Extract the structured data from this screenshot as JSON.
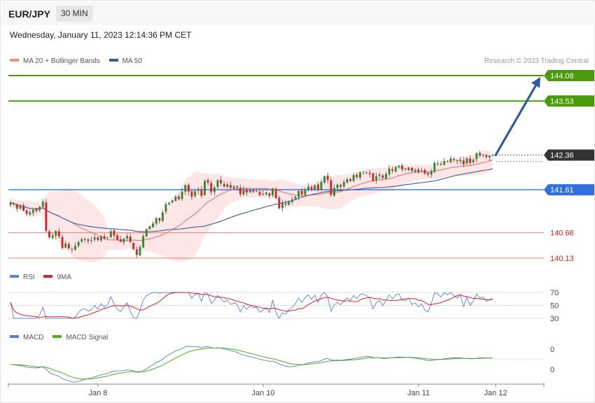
{
  "header": {
    "symbol": "EUR/JPY",
    "timeframe": "30 MIN",
    "datetime": "Wednesday, January 11, 2023 12:14:36 PM CET",
    "copyright": "Research © 2023 Trading Central"
  },
  "legends": {
    "price": [
      {
        "label": "MA 20 + Bollinger Bands",
        "color": "#f28b82"
      },
      {
        "label": "MA 50",
        "color": "#3c5a99"
      }
    ],
    "rsi": [
      {
        "label": "RSI",
        "color": "#5b7fd6"
      },
      {
        "label": "9MA",
        "color": "#e02020"
      }
    ],
    "macd": [
      {
        "label": "MACD",
        "color": "#5b7fd6"
      },
      {
        "label": "MACD Signal",
        "color": "#4caf20"
      }
    ]
  },
  "chart_data": {
    "type": "candlestick",
    "symbol": "EUR/JPY",
    "timeframe": "30 MIN",
    "x_axis_labels": [
      "Jan 8",
      "Jan 10",
      "Jan 11",
      "Jan 12"
    ],
    "price_range": [
      139.95,
      144.25
    ],
    "levels": [
      {
        "value": 144.08,
        "label": "144.08",
        "kind": "target",
        "color": "#4a9a0c"
      },
      {
        "value": 143.53,
        "label": "143.53",
        "kind": "target",
        "color": "#4a9a0c"
      },
      {
        "value": 142.36,
        "label": "142.36",
        "kind": "last",
        "color": "#333333"
      },
      {
        "value": 141.61,
        "label": "141.61",
        "kind": "pivot",
        "color": "#2f6fe0"
      },
      {
        "value": 140.68,
        "label": "140.68",
        "kind": "support",
        "color": "#d42020"
      },
      {
        "value": 140.13,
        "label": "140.13",
        "kind": "support",
        "color": "#d42020"
      }
    ],
    "close": [
      141.33,
      141.3,
      141.2,
      141.26,
      141.16,
      141.09,
      141.12,
      141.18,
      141.15,
      141.24,
      141.35,
      140.72,
      140.58,
      140.62,
      140.72,
      140.6,
      140.35,
      140.45,
      140.34,
      140.31,
      140.4,
      140.48,
      140.54,
      140.55,
      140.5,
      140.52,
      140.58,
      140.52,
      140.6,
      140.55,
      140.58,
      140.71,
      140.62,
      140.53,
      140.49,
      140.55,
      140.61,
      140.48,
      140.32,
      140.2,
      140.37,
      140.61,
      140.75,
      140.82,
      140.88,
      141.0,
      140.94,
      141.12,
      141.3,
      141.32,
      141.38,
      141.46,
      141.41,
      141.57,
      141.71,
      141.57,
      141.46,
      141.58,
      141.61,
      141.48,
      141.8,
      141.76,
      141.56,
      141.66,
      141.82,
      141.75,
      141.68,
      141.73,
      141.65,
      141.68,
      141.66,
      141.51,
      141.62,
      141.55,
      141.6,
      141.57,
      141.58,
      141.5,
      141.52,
      141.55,
      141.48,
      141.64,
      141.43,
      141.21,
      141.32,
      141.29,
      141.36,
      141.4,
      141.46,
      141.58,
      141.51,
      141.61,
      141.68,
      141.62,
      141.71,
      141.61,
      141.78,
      141.9,
      141.82,
      141.5,
      141.65,
      141.72,
      141.67,
      141.78,
      141.84,
      141.8,
      141.93,
      141.88,
      141.99,
      142.0,
      141.98,
      141.95,
      141.8,
      141.9,
      141.94,
      141.87,
      141.95,
      142.07,
      142.02,
      142.1,
      142.13,
      142.05,
      142.05,
      142.09,
      142.02,
      142.04,
      142.0,
      142.03,
      141.96,
      141.94,
      142.02,
      142.19,
      142.18,
      142.15,
      142.23,
      142.21,
      142.29,
      142.25,
      142.23,
      142.26,
      142.16,
      142.29,
      142.19,
      142.26,
      142.4,
      142.35,
      142.37,
      142.32,
      142.35,
      142.36
    ],
    "projection": {
      "from": 142.36,
      "to": 144.08,
      "direction": "up"
    },
    "rsi": {
      "levels": [
        70,
        50,
        30
      ],
      "labels": [
        "70",
        "50",
        "30"
      ]
    },
    "macd": {
      "labels": [
        "0",
        "0"
      ]
    }
  }
}
